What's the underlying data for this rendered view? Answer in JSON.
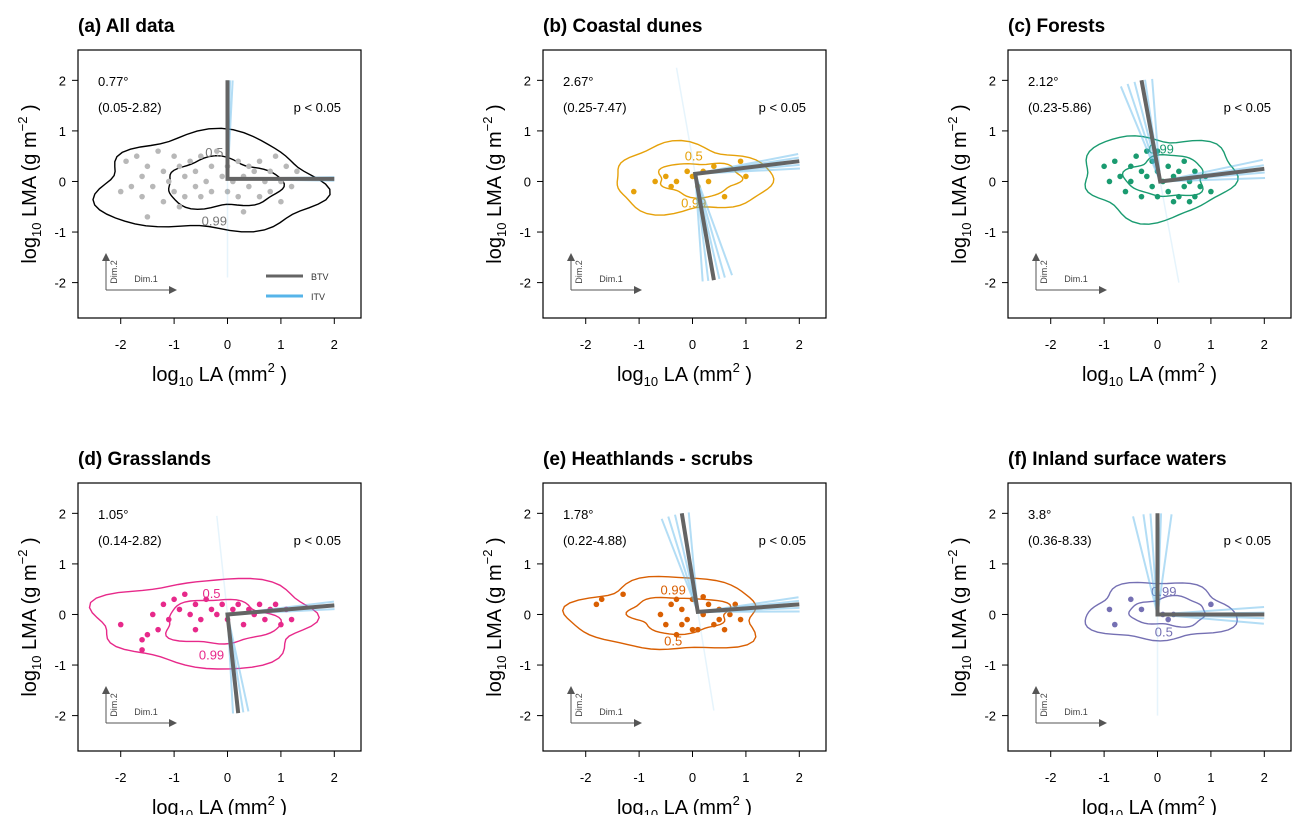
{
  "figure": {
    "xlabel_main": "log",
    "xlabel_sub": "10",
    "xlabel_rest": " LA (mm",
    "xlabel_sup": "2",
    "xlabel_end": " )",
    "ylabel_main": "log",
    "ylabel_sub": "10",
    "ylabel_rest": " LMA (g m",
    "ylabel_sup": "−2",
    "ylabel_end": " )",
    "dim1_label": "Dim.1",
    "dim2_label": "Dim.2",
    "legend": [
      {
        "label": "BTV",
        "color": "#646464"
      },
      {
        "label": "ITV",
        "color": "#56b4e9"
      }
    ],
    "btv_color": "#646464",
    "itv_color": "#56b4e9"
  },
  "chart_data": [
    {
      "type": "scatter",
      "title": "(a) All data",
      "color": "#b8b8b8",
      "contour_color": "#000000",
      "angle": "0.77°",
      "ci": "(0.05-2.82)",
      "pvalue": "p < 0.05",
      "xlim": [
        -2.8,
        2.5
      ],
      "ylim": [
        -2.7,
        2.6
      ],
      "xticks": [
        "-2",
        "-1",
        "0",
        "1",
        "2"
      ],
      "yticks": [
        "2",
        "1",
        "0",
        "-1",
        "-2"
      ],
      "btv": [
        [
          0,
          2.0
        ],
        [
          0,
          0.05
        ],
        [
          2.0,
          0.05
        ]
      ],
      "itv_y_angles": [
        0,
        1.5,
        3
      ],
      "itv_x_angles": [
        0,
        -1,
        1
      ],
      "contour_labels": [
        "0.5",
        "0.99"
      ],
      "points": [
        [
          -2.0,
          -0.2
        ],
        [
          -1.9,
          0.4
        ],
        [
          -1.8,
          -0.1
        ],
        [
          -1.7,
          0.5
        ],
        [
          -1.6,
          -0.3
        ],
        [
          -1.6,
          0.1
        ],
        [
          -1.5,
          0.3
        ],
        [
          -1.4,
          -0.1
        ],
        [
          -1.3,
          0.6
        ],
        [
          -1.2,
          -0.4
        ],
        [
          -1.2,
          0.2
        ],
        [
          -1.1,
          0.0
        ],
        [
          -1.0,
          0.5
        ],
        [
          -1.0,
          -0.2
        ],
        [
          -0.9,
          0.3
        ],
        [
          -0.8,
          -0.3
        ],
        [
          -0.8,
          0.1
        ],
        [
          -0.7,
          0.4
        ],
        [
          -0.6,
          -0.1
        ],
        [
          -0.6,
          0.2
        ],
        [
          -0.5,
          0.5
        ],
        [
          -0.5,
          -0.3
        ],
        [
          -0.4,
          0.0
        ],
        [
          -0.3,
          0.3
        ],
        [
          -0.3,
          -0.2
        ],
        [
          -0.2,
          0.6
        ],
        [
          -0.1,
          0.1
        ],
        [
          0.0,
          -0.2
        ],
        [
          0.0,
          0.3
        ],
        [
          0.1,
          0.0
        ],
        [
          0.2,
          0.4
        ],
        [
          0.2,
          -0.3
        ],
        [
          0.3,
          0.1
        ],
        [
          0.4,
          0.3
        ],
        [
          0.4,
          -0.1
        ],
        [
          0.5,
          0.2
        ],
        [
          0.6,
          -0.3
        ],
        [
          0.6,
          0.4
        ],
        [
          0.7,
          0.0
        ],
        [
          0.8,
          0.2
        ],
        [
          0.8,
          -0.2
        ],
        [
          0.9,
          0.5
        ],
        [
          1.0,
          0.0
        ],
        [
          1.0,
          -0.4
        ],
        [
          1.1,
          0.3
        ],
        [
          1.2,
          -0.1
        ],
        [
          1.3,
          0.2
        ],
        [
          -1.5,
          -0.7
        ],
        [
          -0.9,
          -0.5
        ],
        [
          0.3,
          -0.6
        ]
      ]
    },
    {
      "type": "scatter",
      "title": "(b) Coastal dunes",
      "color": "#e6a10a",
      "contour_color": "#e6a10a",
      "angle": "2.67°",
      "ci": "(0.25-7.47)",
      "pvalue": "p < 0.05",
      "xlim": [
        -2.8,
        2.5
      ],
      "ylim": [
        -2.7,
        2.6
      ],
      "xticks": [
        "-2",
        "-1",
        "0",
        "1",
        "2"
      ],
      "yticks": [
        "2",
        "1",
        "0",
        "-1",
        "-2"
      ],
      "btv": [
        [
          0.4,
          -1.95
        ],
        [
          0.05,
          0.15
        ],
        [
          2.0,
          0.4
        ]
      ],
      "itv_y_angles": [
        -10,
        -6,
        -3,
        3,
        6
      ],
      "itv_x_angles": [
        -4,
        -2,
        2,
        4
      ],
      "contour_labels": [
        "0.5",
        "0.99"
      ],
      "points": [
        [
          -1.1,
          -0.2
        ],
        [
          -0.7,
          0.0
        ],
        [
          -0.5,
          0.1
        ],
        [
          -0.4,
          -0.1
        ],
        [
          -0.3,
          0.0
        ],
        [
          -0.1,
          0.2
        ],
        [
          0.0,
          0.1
        ],
        [
          0.1,
          -0.1
        ],
        [
          0.3,
          0.0
        ],
        [
          0.4,
          0.3
        ],
        [
          0.6,
          -0.3
        ],
        [
          0.9,
          0.4
        ],
        [
          1.0,
          0.1
        ],
        [
          0.2,
          0.2
        ]
      ]
    },
    {
      "type": "scatter",
      "title": "(c) Forests",
      "color": "#1a9b70",
      "contour_color": "#1a9b70",
      "angle": "2.12°",
      "ci": "(0.23-5.86)",
      "pvalue": "p < 0.05",
      "xlim": [
        -2.8,
        2.5
      ],
      "ylim": [
        -2.7,
        2.6
      ],
      "xticks": [
        "-2",
        "-1",
        "0",
        "1",
        "2"
      ],
      "yticks": [
        "2",
        "1",
        "0",
        "-1",
        "-2"
      ],
      "btv": [
        [
          -0.3,
          2.0
        ],
        [
          0.05,
          0.0
        ],
        [
          2.0,
          0.25
        ]
      ],
      "itv_y_angles": [
        -12,
        -8,
        -4,
        2,
        6
      ],
      "itv_x_angles": [
        -5,
        -2,
        2,
        5
      ],
      "contour_labels": [
        "0.99"
      ],
      "points": [
        [
          -1.0,
          0.3
        ],
        [
          -0.9,
          0.0
        ],
        [
          -0.8,
          0.4
        ],
        [
          -0.7,
          0.1
        ],
        [
          -0.6,
          -0.2
        ],
        [
          -0.5,
          0.3
        ],
        [
          -0.5,
          0.0
        ],
        [
          -0.4,
          0.5
        ],
        [
          -0.3,
          0.2
        ],
        [
          -0.3,
          -0.3
        ],
        [
          -0.2,
          0.1
        ],
        [
          -0.1,
          0.4
        ],
        [
          -0.1,
          -0.1
        ],
        [
          0.0,
          0.2
        ],
        [
          0.0,
          -0.3
        ],
        [
          0.1,
          0.0
        ],
        [
          0.2,
          0.3
        ],
        [
          0.2,
          -0.2
        ],
        [
          0.3,
          0.1
        ],
        [
          0.3,
          -0.4
        ],
        [
          0.4,
          0.2
        ],
        [
          0.5,
          -0.1
        ],
        [
          0.5,
          0.4
        ],
        [
          0.6,
          0.0
        ],
        [
          0.7,
          -0.3
        ],
        [
          0.7,
          0.2
        ],
        [
          0.8,
          -0.1
        ],
        [
          0.9,
          0.1
        ],
        [
          1.0,
          -0.2
        ],
        [
          0.0,
          0.6
        ],
        [
          -0.2,
          0.6
        ],
        [
          0.4,
          -0.3
        ],
        [
          0.6,
          -0.4
        ]
      ]
    },
    {
      "type": "scatter",
      "title": "(d) Grasslands",
      "color": "#e7298a",
      "contour_color": "#e7298a",
      "angle": "1.05°",
      "ci": "(0.14-2.82)",
      "pvalue": "p < 0.05",
      "xlim": [
        -2.8,
        2.5
      ],
      "ylim": [
        -2.7,
        2.6
      ],
      "xticks": [
        "-2",
        "-1",
        "0",
        "1",
        "2"
      ],
      "yticks": [
        "2",
        "1",
        "0",
        "-1",
        "-2"
      ],
      "btv": [
        [
          0.2,
          -1.95
        ],
        [
          0.0,
          0.0
        ],
        [
          2.0,
          0.18
        ]
      ],
      "itv_y_angles": [
        -6,
        -3,
        0,
        3
      ],
      "itv_x_angles": [
        -2,
        0,
        2
      ],
      "contour_labels": [
        "0.5",
        "0.99"
      ],
      "points": [
        [
          -2.0,
          -0.2
        ],
        [
          -1.6,
          -0.7
        ],
        [
          -1.5,
          -0.4
        ],
        [
          -1.4,
          0.0
        ],
        [
          -1.3,
          -0.3
        ],
        [
          -1.2,
          0.2
        ],
        [
          -1.1,
          -0.1
        ],
        [
          -1.0,
          0.3
        ],
        [
          -0.9,
          0.1
        ],
        [
          -0.8,
          0.4
        ],
        [
          -0.7,
          0.0
        ],
        [
          -0.6,
          0.2
        ],
        [
          -0.5,
          -0.1
        ],
        [
          -0.4,
          0.3
        ],
        [
          -0.3,
          0.1
        ],
        [
          -0.2,
          0.0
        ],
        [
          -0.1,
          0.2
        ],
        [
          0.0,
          -0.1
        ],
        [
          0.1,
          0.1
        ],
        [
          0.2,
          0.2
        ],
        [
          0.3,
          -0.2
        ],
        [
          0.4,
          0.1
        ],
        [
          0.5,
          0.0
        ],
        [
          0.6,
          0.2
        ],
        [
          0.7,
          -0.1
        ],
        [
          0.8,
          0.1
        ],
        [
          0.9,
          0.2
        ],
        [
          1.0,
          -0.2
        ],
        [
          1.1,
          0.1
        ],
        [
          1.2,
          -0.1
        ],
        [
          -1.6,
          -0.5
        ],
        [
          -0.6,
          -0.3
        ]
      ]
    },
    {
      "type": "scatter",
      "title": "(e) Heathlands - scrubs",
      "color": "#d95f02",
      "contour_color": "#d95f02",
      "angle": "1.78°",
      "ci": "(0.22-4.88)",
      "pvalue": "p < 0.05",
      "xlim": [
        -2.8,
        2.5
      ],
      "ylim": [
        -2.7,
        2.6
      ],
      "xticks": [
        "-2",
        "-1",
        "0",
        "1",
        "2"
      ],
      "yticks": [
        "2",
        "1",
        "0",
        "-1",
        "-2"
      ],
      "btv": [
        [
          -0.2,
          2.0
        ],
        [
          0.1,
          0.05
        ],
        [
          2.0,
          0.2
        ]
      ],
      "itv_y_angles": [
        -12,
        -8,
        -4,
        0,
        4
      ],
      "itv_x_angles": [
        -4,
        -2,
        2,
        4
      ],
      "contour_labels": [
        "0.99",
        "0.5"
      ],
      "points": [
        [
          -1.8,
          0.2
        ],
        [
          -1.7,
          0.3
        ],
        [
          -1.3,
          0.4
        ],
        [
          -0.6,
          0.0
        ],
        [
          -0.5,
          -0.2
        ],
        [
          -0.4,
          0.2
        ],
        [
          -0.3,
          -0.4
        ],
        [
          -0.2,
          0.1
        ],
        [
          -0.1,
          -0.1
        ],
        [
          0.0,
          0.3
        ],
        [
          0.1,
          -0.3
        ],
        [
          0.2,
          0.0
        ],
        [
          0.3,
          0.2
        ],
        [
          0.4,
          -0.2
        ],
        [
          0.5,
          0.1
        ],
        [
          0.6,
          -0.3
        ],
        [
          0.7,
          0.0
        ],
        [
          0.8,
          0.2
        ],
        [
          0.9,
          -0.1
        ],
        [
          -0.3,
          0.3
        ],
        [
          0.2,
          0.35
        ],
        [
          0.5,
          -0.1
        ],
        [
          -0.2,
          -0.2
        ],
        [
          0.0,
          -0.3
        ]
      ]
    },
    {
      "type": "scatter",
      "title": "(f) Inland surface waters",
      "color": "#7570b3",
      "contour_color": "#7570b3",
      "angle": "3.8°",
      "ci": "(0.36-8.33)",
      "pvalue": "p < 0.05",
      "xlim": [
        -2.8,
        2.5
      ],
      "ylim": [
        -2.7,
        2.6
      ],
      "xticks": [
        "-2",
        "-1",
        "0",
        "1",
        "2"
      ],
      "yticks": [
        "2",
        "1",
        "0",
        "-1",
        "-2"
      ],
      "btv": [
        [
          0.0,
          2.0
        ],
        [
          0.0,
          0.0
        ],
        [
          2.0,
          0.0
        ]
      ],
      "itv_y_angles": [
        -14,
        -8,
        -4,
        2,
        8
      ],
      "itv_x_angles": [
        -4,
        -1,
        2,
        5
      ],
      "contour_labels": [
        "0.99",
        "0.5"
      ],
      "points": [
        [
          -0.9,
          0.1
        ],
        [
          -0.8,
          -0.2
        ],
        [
          -0.5,
          0.3
        ],
        [
          -0.3,
          0.1
        ],
        [
          0.1,
          0.0
        ],
        [
          0.2,
          -0.1
        ],
        [
          0.3,
          0.0
        ],
        [
          1.0,
          0.2
        ]
      ]
    }
  ]
}
